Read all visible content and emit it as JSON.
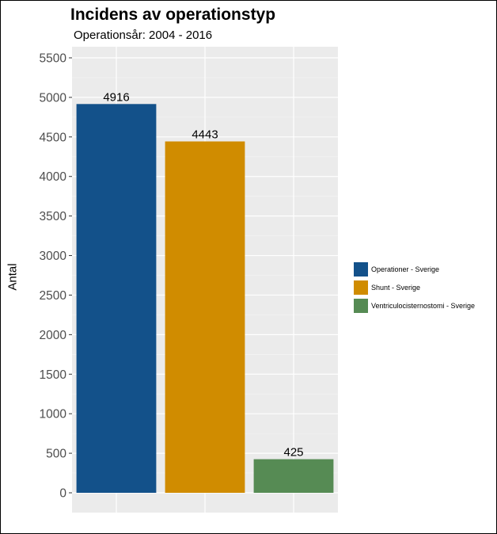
{
  "chart_data": {
    "type": "bar",
    "title": "Incidens av operationstyp",
    "subtitle": "Operationsår: 2004 - 2016",
    "xlabel": "",
    "ylabel": "Antal",
    "ylim": [
      0,
      5500
    ],
    "yticks": [
      0,
      500,
      1000,
      1500,
      2000,
      2500,
      3000,
      3500,
      4000,
      4500,
      5000,
      5500
    ],
    "grid": true,
    "legend_position": "right",
    "categories": [
      "Operationer - Sverige",
      "Shunt - Sverige",
      "Ventriculocisternostomi - Sverige"
    ],
    "values": [
      4916,
      4443,
      425
    ],
    "colors": [
      "#13518a",
      "#d08c00",
      "#568b54"
    ]
  }
}
